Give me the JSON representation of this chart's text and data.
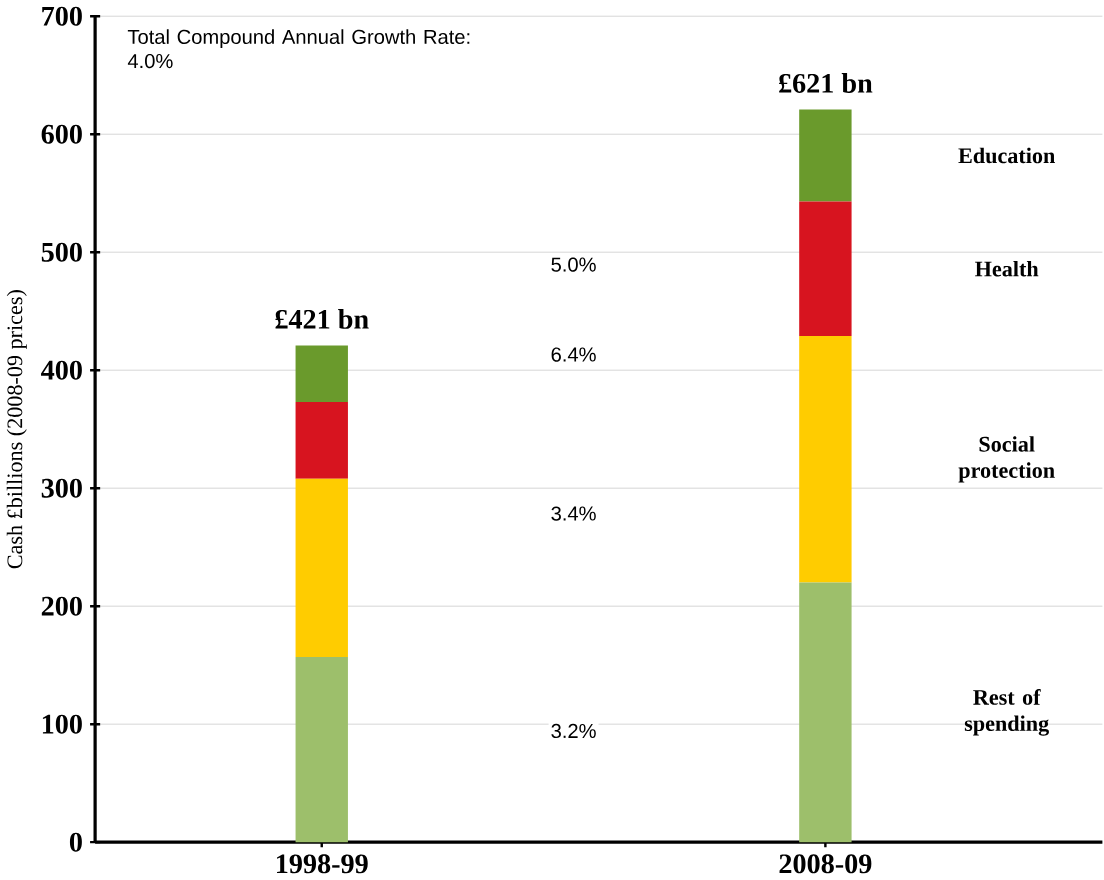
{
  "chart_data": {
    "type": "bar",
    "stacked": true,
    "ylabel": "Cash £billions (2008-09 prices)",
    "categories": [
      "1998-99",
      "2008-09"
    ],
    "series": [
      {
        "name": "Rest of spending",
        "color": "#9dbf6b",
        "values": [
          157,
          220
        ]
      },
      {
        "name": "Social protection",
        "color": "#ffcc00",
        "values": [
          151,
          209
        ]
      },
      {
        "name": "Health",
        "color": "#d7141f",
        "values": [
          65,
          114
        ]
      },
      {
        "name": "Education",
        "color": "#6a9a2c",
        "values": [
          48,
          78
        ]
      }
    ],
    "totals": [
      "£421 bn",
      "£621 bn"
    ],
    "annotations": [
      "Total Compound Annual Growth Rate: 4.0%",
      "5.0%",
      "6.4%",
      "3.4%",
      "3.2%"
    ],
    "ylim": [
      0,
      700
    ],
    "yticks": [
      0,
      100,
      200,
      300,
      400,
      500,
      600,
      700
    ],
    "grid": "y"
  }
}
